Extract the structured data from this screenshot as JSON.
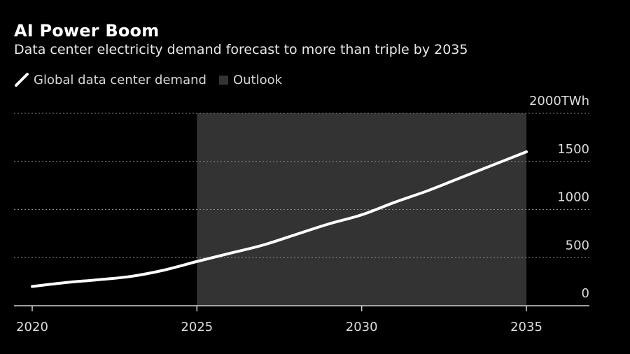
{
  "header": {
    "title": "AI Power Boom",
    "subtitle": "Data center electricity demand forecast to more than triple by 2035"
  },
  "legend": {
    "items": [
      {
        "label": "Global data center demand",
        "icon": "line-swatch-icon",
        "color": "#ffffff"
      },
      {
        "label": "Outlook",
        "icon": "box-swatch-icon",
        "color": "#333333"
      }
    ]
  },
  "chart_data": {
    "type": "line",
    "title": "AI Power Boom",
    "subtitle": "Data center electricity demand forecast to more than triple by 2035",
    "xlabel": "",
    "ylabel": "TWh",
    "unit": "TWh",
    "x": [
      2020,
      2021,
      2022,
      2023,
      2024,
      2025,
      2026,
      2027,
      2028,
      2029,
      2030,
      2031,
      2032,
      2033,
      2034,
      2035
    ],
    "series": [
      {
        "name": "Global data center demand",
        "color": "#ffffff",
        "values": [
          200,
          240,
          270,
          305,
          370,
          460,
          545,
          630,
          740,
          850,
          945,
          1075,
          1195,
          1330,
          1465,
          1600
        ]
      }
    ],
    "shaded_region": {
      "label": "Outlook",
      "x_start": 2025,
      "x_end": 2035,
      "color": "#333333"
    },
    "xlim": [
      2020,
      2036.5
    ],
    "ylim": [
      0,
      2000
    ],
    "x_ticks": [
      2020,
      2025,
      2030,
      2035
    ],
    "x_tick_labels": [
      "2020",
      "2025",
      "2030",
      "2035"
    ],
    "y_ticks": [
      0,
      500,
      1000,
      1500,
      2000
    ],
    "y_tick_labels": [
      "0",
      "500",
      "1000",
      "1500",
      "2000TWh"
    ],
    "grid": "horizontal-dotted",
    "y_axis_side": "right",
    "legend_position": "top-left"
  }
}
